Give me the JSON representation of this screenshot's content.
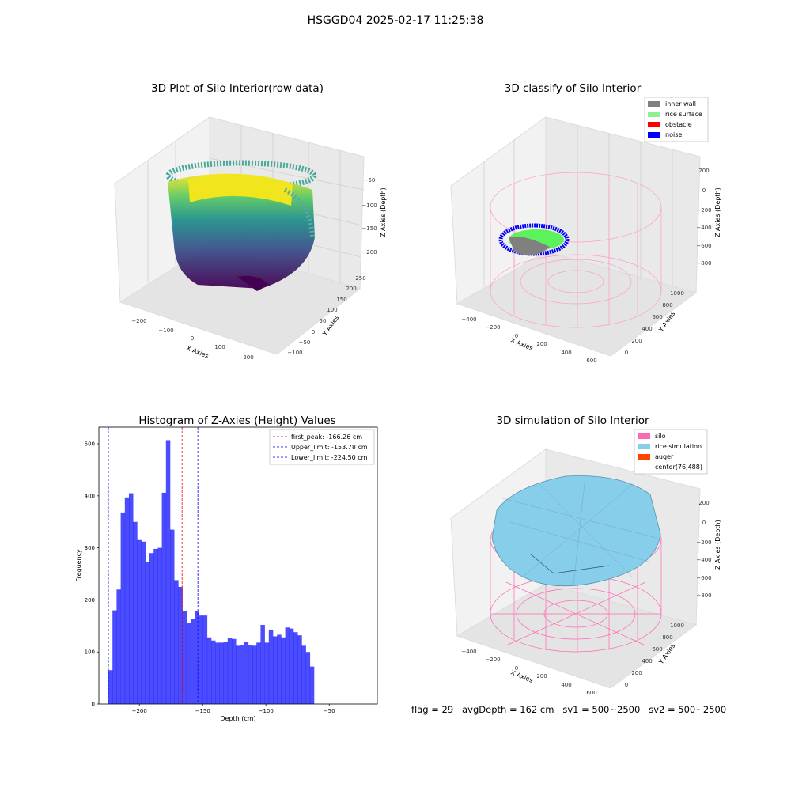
{
  "suptitle": "HSGGD04 2025-02-17 11:25:38",
  "footer": "flag = 29   avgDepth = 162 cm   sv1 = 500~2500   sv2 = 500~2500",
  "colors": {
    "viridis_dark": "#440154",
    "viridis_mid": "#21918c",
    "viridis_light": "#fde725",
    "inner_wall": "#808080",
    "rice_surface": "#90ee90",
    "obstacle": "#ff0000",
    "noise": "#0000ff",
    "silo": "#ff69b4",
    "rice_simulation": "#87ceeb",
    "auger": "#ff4500",
    "hist_bar": "#0000ff"
  },
  "chart_data": [
    {
      "type": "scatter",
      "subtype": "3d-scatter",
      "title": "3D Plot of Silo Interior(row data)",
      "xlabel": "X Axies",
      "ylabel": "Y Axies",
      "zlabel": "Z Axies (Depth)",
      "x_ticks": [
        "−200",
        "−100",
        "0",
        "100",
        "200"
      ],
      "y_ticks": [
        "−100",
        "−50",
        "0",
        "50",
        "100",
        "150",
        "200",
        "250"
      ],
      "z_ticks": [
        "−50",
        "−100",
        "−150",
        "−200"
      ],
      "colormap": "viridis"
    },
    {
      "type": "scatter",
      "subtype": "3d-scatter",
      "title": "3D classify of Silo Interior",
      "xlabel": "X Axies",
      "ylabel": "Y Axies",
      "zlabel": "Z Axies (Depth)",
      "x_ticks": [
        "−400",
        "−200",
        "0",
        "200",
        "400",
        "600"
      ],
      "y_ticks": [
        "0",
        "200",
        "400",
        "600",
        "800",
        "1000"
      ],
      "z_ticks": [
        "200",
        "0",
        "−200",
        "−400",
        "−600",
        "−800"
      ],
      "legend": [
        {
          "label": "inner wall",
          "color": "#808080"
        },
        {
          "label": "rice surface",
          "color": "#90ee90"
        },
        {
          "label": "obstacle",
          "color": "#ff0000"
        },
        {
          "label": "noise",
          "color": "#0000ff"
        }
      ],
      "legend_position": "top-right"
    },
    {
      "type": "bar",
      "subtype": "histogram",
      "title": "Histogram of Z-Axies (Height) Values",
      "xlabel": "Depth (cm)",
      "ylabel": "Frequency",
      "xlim": [
        -232,
        -12
      ],
      "ylim": [
        0,
        532
      ],
      "x_ticks": [
        -200,
        -150,
        -100,
        -50
      ],
      "y_ticks": [
        0,
        100,
        200,
        300,
        400,
        500
      ],
      "bin_start": -224.5,
      "bin_width": 3.25,
      "values": [
        65,
        180,
        220,
        368,
        397,
        405,
        350,
        315,
        312,
        273,
        290,
        298,
        300,
        406,
        507,
        335,
        238,
        225,
        178,
        155,
        163,
        178,
        170,
        170,
        128,
        122,
        118,
        118,
        120,
        127,
        125,
        112,
        113,
        120,
        113,
        112,
        118,
        152,
        118,
        143,
        130,
        133,
        128,
        147,
        145,
        138,
        132,
        112,
        100,
        72
      ],
      "vlines": [
        {
          "label": "first_peak: -166.26 cm",
          "x": -166.26,
          "color": "#ff0000"
        },
        {
          "label": "Upper_limit: -153.78 cm",
          "x": -153.78,
          "color": "#0000ff"
        },
        {
          "label": "Lower_limit: -224.50 cm",
          "x": -224.5,
          "color": "#0000ff"
        }
      ],
      "legend_position": "top-right"
    },
    {
      "type": "area",
      "subtype": "3d-surface",
      "title": "3D simulation of Silo Interior",
      "xlabel": "X Axies",
      "ylabel": "Y Axies",
      "zlabel": "Z Axies (Depth)",
      "x_ticks": [
        "−400",
        "−200",
        "0",
        "200",
        "400",
        "600"
      ],
      "y_ticks": [
        "0",
        "200",
        "400",
        "600",
        "800",
        "1000"
      ],
      "z_ticks": [
        "200",
        "0",
        "−200",
        "−400",
        "−600",
        "−800"
      ],
      "legend": [
        {
          "label": "silo",
          "color": "#ff69b4"
        },
        {
          "label": "rice simulation",
          "color": "#87ceeb"
        },
        {
          "label": "auger",
          "color": "#ff4500"
        },
        {
          "label": "center(76,488)",
          "color": ""
        }
      ],
      "legend_position": "top-right"
    }
  ]
}
